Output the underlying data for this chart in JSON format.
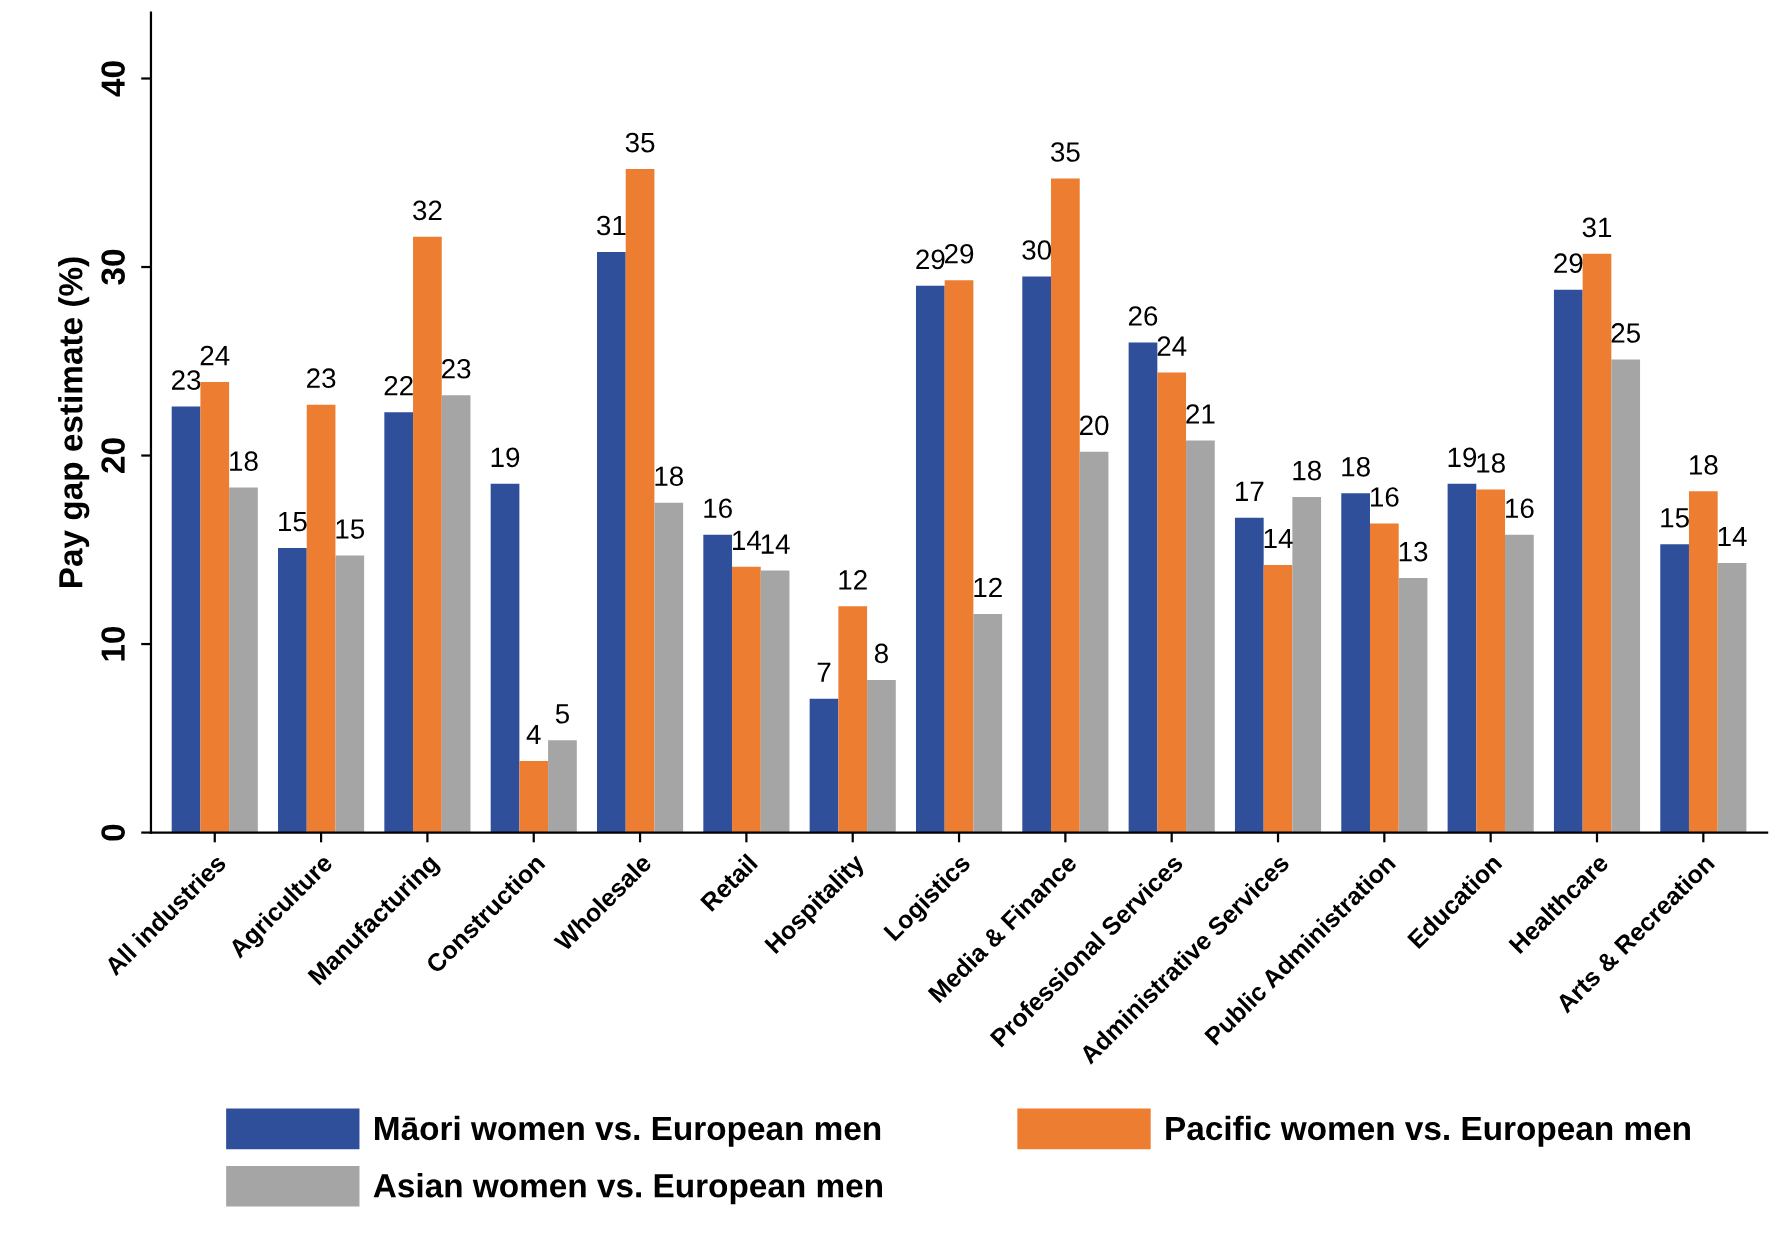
{
  "chart_data": {
    "type": "bar",
    "ylabel": "Pay gap estimate (%)",
    "categories": [
      "All industries",
      "Agriculture",
      "Manufacturing",
      "Construction",
      "Wholesale",
      "Retail",
      "Hospitality",
      "Logistics",
      "Media & Finance",
      "Professional Services",
      "Administrative Services",
      "Public Administration",
      "Education",
      "Healthcare",
      "Arts & Recreation"
    ],
    "series": [
      {
        "name": "Māori women vs. European men",
        "color": "#2f4f9b",
        "values": [
          22.6,
          15.1,
          22.3,
          18.5,
          30.8,
          15.8,
          7.1,
          29.0,
          29.5,
          26.0,
          16.7,
          18.0,
          18.5,
          28.8,
          15.3
        ],
        "value_labels": [
          "23",
          "15",
          "22",
          "19",
          "31",
          "16",
          "7",
          "29",
          "30",
          "26",
          "17",
          "18",
          "19",
          "29",
          "15"
        ]
      },
      {
        "name": "Pacific women vs. European men",
        "color": "#ed7d31",
        "values": [
          23.9,
          22.7,
          31.6,
          3.8,
          35.2,
          14.1,
          12.0,
          29.3,
          34.7,
          24.4,
          14.2,
          16.4,
          18.2,
          30.7,
          18.1
        ],
        "value_labels": [
          "24",
          "23",
          "32",
          "4",
          "35",
          "14",
          "12",
          "29",
          "35",
          "24",
          "14",
          "16",
          "18",
          "31",
          "18"
        ]
      },
      {
        "name": "Asian women vs. European men",
        "color": "#a5a5a5",
        "values": [
          18.3,
          14.7,
          23.2,
          4.9,
          17.5,
          13.9,
          8.1,
          11.6,
          20.2,
          20.8,
          17.8,
          13.5,
          15.8,
          25.1,
          14.3
        ],
        "value_labels": [
          "18",
          "15",
          "23",
          "5",
          "18",
          "14",
          "8",
          "12",
          "20",
          "21",
          "18",
          "13",
          "16",
          "25",
          "14"
        ]
      }
    ],
    "ylim": [
      0,
      43.5
    ],
    "yticks": [
      0,
      10,
      20,
      30,
      40
    ],
    "grid": false,
    "legend": "bottom"
  }
}
